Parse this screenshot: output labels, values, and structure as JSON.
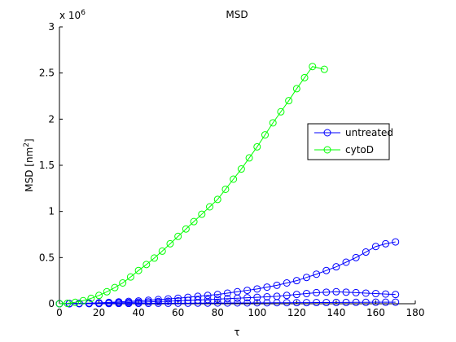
{
  "chart_data": {
    "type": "line",
    "title": "MSD",
    "xlabel": "τ",
    "ylabel": {
      "before": "MSD [nm",
      "sup": "2",
      "after": "]"
    },
    "y_exponent": {
      "base": "x 10",
      "power": "6"
    },
    "xlim": [
      0,
      180
    ],
    "xticks": [
      0,
      20,
      40,
      60,
      80,
      100,
      120,
      140,
      160,
      180
    ],
    "ylim": [
      0,
      3
    ],
    "yticks": [
      0,
      0.5,
      1,
      1.5,
      2,
      2.5,
      3
    ],
    "legend_position": "right",
    "series": [
      {
        "name": "untreated",
        "color": "#0000ff",
        "x": [
          0,
          5,
          10,
          15,
          20,
          25,
          30,
          35,
          40,
          45,
          50,
          55,
          60,
          65,
          70,
          75,
          80,
          85,
          90,
          95,
          100,
          105,
          110,
          115,
          120,
          125,
          130,
          135,
          140,
          145,
          150,
          155,
          160,
          165,
          170
        ],
        "lines": [
          [
            0,
            0.002,
            0.004,
            0.007,
            0.01,
            0.014,
            0.02,
            0.025,
            0.03,
            0.037,
            0.045,
            0.052,
            0.06,
            0.07,
            0.08,
            0.09,
            0.1,
            0.115,
            0.13,
            0.145,
            0.16,
            0.18,
            0.2,
            0.225,
            0.25,
            0.285,
            0.32,
            0.36,
            0.4,
            0.45,
            0.5,
            0.56,
            0.62,
            0.65,
            0.67
          ],
          [
            0,
            0.001,
            0.002,
            0.004,
            0.006,
            0.008,
            0.01,
            0.013,
            0.016,
            0.02,
            0.024,
            0.028,
            0.032,
            0.036,
            0.04,
            0.045,
            0.05,
            0.055,
            0.06,
            0.065,
            0.07,
            0.075,
            0.08,
            0.09,
            0.1,
            0.11,
            0.12,
            0.125,
            0.13,
            0.125,
            0.12,
            0.115,
            0.11,
            0.105,
            0.1
          ],
          [
            0,
            0,
            0.001,
            0.001,
            0.002,
            0.002,
            0.003,
            0.003,
            0.004,
            0.004,
            0.005,
            0.005,
            0.006,
            0.006,
            0.007,
            0.007,
            0.008,
            0.008,
            0.009,
            0.009,
            0.01,
            0.01,
            0.011,
            0.011,
            0.012,
            0.012,
            0.013,
            0.013,
            0.014,
            0.014,
            0.015,
            0.015,
            0.016,
            0.016,
            0.017
          ]
        ]
      },
      {
        "name": "cytoD",
        "color": "#00ff00",
        "x": [
          0,
          4,
          8,
          12,
          16,
          20,
          24,
          28,
          32,
          36,
          40,
          44,
          48,
          52,
          56,
          60,
          64,
          68,
          72,
          76,
          80,
          84,
          88,
          92,
          96,
          100,
          104,
          108,
          112,
          116,
          120,
          124,
          128,
          134
        ],
        "lines": [
          [
            0,
            0.004,
            0.015,
            0.033,
            0.058,
            0.09,
            0.13,
            0.175,
            0.225,
            0.29,
            0.36,
            0.425,
            0.495,
            0.57,
            0.65,
            0.73,
            0.81,
            0.89,
            0.97,
            1.05,
            1.13,
            1.24,
            1.35,
            1.46,
            1.58,
            1.7,
            1.83,
            1.96,
            2.08,
            2.2,
            2.33,
            2.45,
            2.57,
            2.54
          ]
        ]
      }
    ]
  }
}
